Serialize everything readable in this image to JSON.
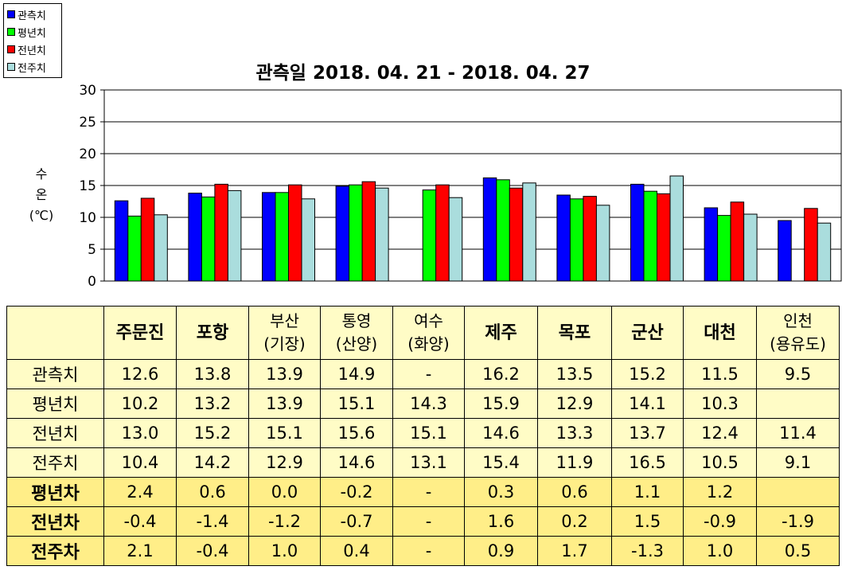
{
  "legend": [
    {
      "name": "관측치",
      "color": "#0000ff"
    },
    {
      "name": "평년치",
      "color": "#00ff00"
    },
    {
      "name": "전년치",
      "color": "#ff0000"
    },
    {
      "name": "전주치",
      "color": "#aadddd"
    }
  ],
  "chart_data": {
    "type": "bar",
    "title": "관측일 2018. 04. 21 - 2018. 04. 27",
    "ylabel_lines": [
      "수",
      "온",
      "(℃)"
    ],
    "ylim": [
      0,
      30
    ],
    "yticks": [
      0,
      5,
      10,
      15,
      20,
      25,
      30
    ],
    "grid": true,
    "legend_position": "top-left",
    "categories": [
      "주문진",
      "포항",
      "부산(기장)",
      "통영(산양)",
      "여수(화양)",
      "제주",
      "목포",
      "군산",
      "대천",
      "인천(용유도)"
    ],
    "series": [
      {
        "name": "관측치",
        "color": "#0000ff",
        "values": [
          12.6,
          13.8,
          13.9,
          14.9,
          null,
          16.2,
          13.5,
          15.2,
          11.5,
          9.5
        ]
      },
      {
        "name": "평년치",
        "color": "#00ff00",
        "values": [
          10.2,
          13.2,
          13.9,
          15.1,
          14.3,
          15.9,
          12.9,
          14.1,
          10.3,
          null
        ]
      },
      {
        "name": "전년치",
        "color": "#ff0000",
        "values": [
          13.0,
          15.2,
          15.1,
          15.6,
          15.1,
          14.6,
          13.3,
          13.7,
          12.4,
          11.4
        ]
      },
      {
        "name": "전주치",
        "color": "#aadddd",
        "values": [
          10.4,
          14.2,
          12.9,
          14.6,
          13.1,
          15.4,
          11.9,
          16.5,
          10.5,
          9.1
        ]
      }
    ]
  },
  "table": {
    "columns": [
      {
        "lines": [
          "주문진"
        ],
        "bold": true
      },
      {
        "lines": [
          "포항"
        ],
        "bold": true
      },
      {
        "lines": [
          "부산",
          "(기장)"
        ],
        "bold": false
      },
      {
        "lines": [
          "통영",
          "(산양)"
        ],
        "bold": false
      },
      {
        "lines": [
          "여수",
          "(화양)"
        ],
        "bold": false
      },
      {
        "lines": [
          "제주"
        ],
        "bold": true
      },
      {
        "lines": [
          "목포"
        ],
        "bold": true
      },
      {
        "lines": [
          "군산"
        ],
        "bold": true
      },
      {
        "lines": [
          "대천"
        ],
        "bold": true
      },
      {
        "lines": [
          "인천",
          "(용유도)"
        ],
        "bold": false
      }
    ],
    "rows": [
      {
        "label": "관측치",
        "diff": false,
        "cells": [
          "12.6",
          "13.8",
          "13.9",
          "14.9",
          "-",
          "16.2",
          "13.5",
          "15.2",
          "11.5",
          "9.5"
        ]
      },
      {
        "label": "평년치",
        "diff": false,
        "cells": [
          "10.2",
          "13.2",
          "13.9",
          "15.1",
          "14.3",
          "15.9",
          "12.9",
          "14.1",
          "10.3",
          ""
        ]
      },
      {
        "label": "전년치",
        "diff": false,
        "cells": [
          "13.0",
          "15.2",
          "15.1",
          "15.6",
          "15.1",
          "14.6",
          "13.3",
          "13.7",
          "12.4",
          "11.4"
        ]
      },
      {
        "label": "전주치",
        "diff": false,
        "cells": [
          "10.4",
          "14.2",
          "12.9",
          "14.6",
          "13.1",
          "15.4",
          "11.9",
          "16.5",
          "10.5",
          "9.1"
        ]
      },
      {
        "label": "평년차",
        "diff": true,
        "cells": [
          "2.4",
          "0.6",
          "0.0",
          "-0.2",
          "-",
          "0.3",
          "0.6",
          "1.1",
          "1.2",
          ""
        ]
      },
      {
        "label": "전년차",
        "diff": true,
        "cells": [
          "-0.4",
          "-1.4",
          "-1.2",
          "-0.7",
          "-",
          "1.6",
          "0.2",
          "1.5",
          "-0.9",
          "-1.9"
        ]
      },
      {
        "label": "전주차",
        "diff": true,
        "cells": [
          "2.1",
          "-0.4",
          "1.0",
          "0.4",
          "-",
          "0.9",
          "1.7",
          "-1.3",
          "1.0",
          "0.5"
        ]
      }
    ]
  }
}
